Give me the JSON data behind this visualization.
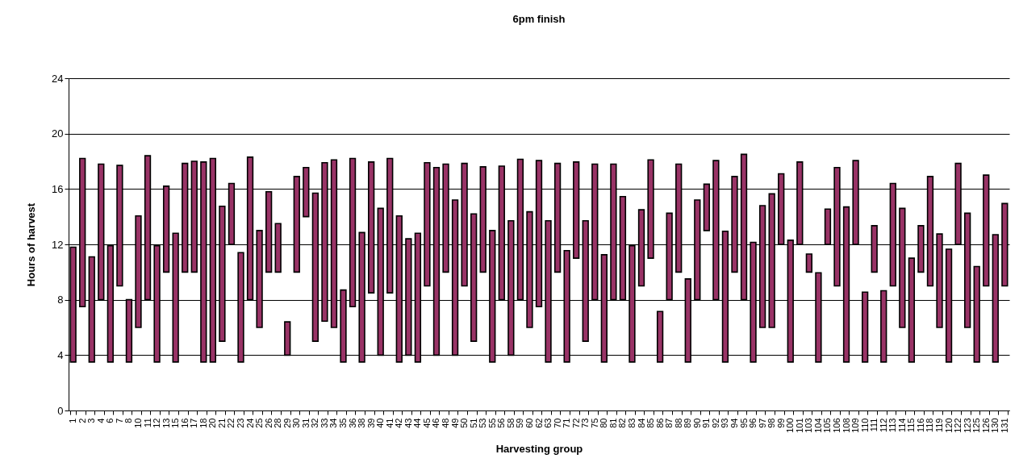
{
  "chart_data": {
    "type": "bar",
    "title": "6pm finish",
    "xlabel": "Harvesting group",
    "ylabel": "Hours of harvest",
    "categories": [
      "1",
      "2",
      "3",
      "4",
      "6",
      "7",
      "8",
      "10",
      "11",
      "12",
      "13",
      "15",
      "16",
      "17",
      "18",
      "20",
      "21",
      "22",
      "23",
      "24",
      "25",
      "26",
      "28",
      "29",
      "30",
      "31",
      "32",
      "33",
      "34",
      "35",
      "36",
      "38",
      "39",
      "40",
      "41",
      "42",
      "43",
      "44",
      "45",
      "46",
      "48",
      "49",
      "50",
      "51",
      "53",
      "55",
      "56",
      "58",
      "59",
      "60",
      "62",
      "63",
      "70",
      "71",
      "72",
      "73",
      "75",
      "80",
      "81",
      "82",
      "83",
      "84",
      "85",
      "86",
      "87",
      "88",
      "89",
      "90",
      "91",
      "92",
      "93",
      "94",
      "95",
      "96",
      "97",
      "98",
      "99",
      "100",
      "101",
      "103",
      "104",
      "105",
      "106",
      "108",
      "109",
      "110",
      "111",
      "112",
      "113",
      "114",
      "115",
      "116",
      "118",
      "119",
      "120",
      "122",
      "123",
      "125",
      "126",
      "130",
      "131"
    ],
    "base": [
      3.5,
      7.5,
      3.5,
      8,
      3.5,
      9,
      3.5,
      6,
      8,
      3.5,
      10,
      3.5,
      10,
      10,
      3.5,
      3.5,
      5,
      12,
      3.5,
      8,
      6,
      10,
      10,
      4,
      10,
      14,
      5,
      6.45,
      6,
      3.5,
      7.5,
      3.5,
      8.5,
      4,
      8.5,
      3.5,
      4,
      3.5,
      9,
      4,
      10,
      4,
      9,
      5,
      10,
      3.5,
      8,
      4,
      8,
      6,
      7.5,
      3.5,
      10,
      3.5,
      11,
      5,
      8,
      3.5,
      8,
      8,
      3.5,
      9,
      11,
      3.5,
      8,
      10,
      3.5,
      8,
      13,
      8,
      3.5,
      10,
      8,
      3.5,
      6,
      6,
      12,
      3.5,
      12,
      10,
      3.5,
      12,
      9,
      3.5,
      12,
      3.5,
      10,
      3.5,
      9,
      6,
      3.5,
      10,
      9,
      6,
      3.5,
      12,
      6,
      3.5,
      9,
      3.5,
      9
    ],
    "values": [
      8.3,
      10.7,
      7.6,
      9.8,
      8.4,
      8.7,
      4.5,
      8.05,
      10.4,
      8.4,
      6.2,
      9.3,
      7.85,
      8,
      14.45,
      14.7,
      9.75,
      4.4,
      7.9,
      10.3,
      7,
      5.8,
      3.5,
      2.4,
      6.9,
      3.55,
      10.7,
      11.45,
      12.1,
      5.2,
      10.7,
      9.35,
      9.45,
      10.6,
      9.7,
      10.55,
      8.4,
      9.3,
      8.9,
      13.55,
      7.8,
      11.2,
      8.85,
      9.2,
      7.6,
      9.5,
      9.65,
      9.7,
      10.15,
      8.35,
      10.55,
      10.2,
      7.85,
      8.05,
      6.95,
      8.7,
      9.8,
      7.75,
      9.8,
      7.45,
      8.4,
      5.5,
      7.1,
      3.65,
      6.25,
      7.8,
      6,
      7.2,
      3.35,
      10.05,
      9.45,
      6.9,
      10.5,
      8.65,
      8.8,
      9.65,
      5.1,
      8.8,
      5.95,
      1.3,
      6.45,
      2.55,
      8.55,
      11.2,
      6.05,
      5.05,
      3.35,
      5.15,
      7.4,
      8.6,
      7.5,
      3.35,
      7.9,
      6.75,
      8.15,
      5.85,
      8.25,
      6.9,
      8,
      9.2,
      5.95
    ],
    "color": "#993366",
    "ylim": [
      0,
      24
    ],
    "yticks": [
      0,
      4,
      8,
      12,
      16,
      20,
      24
    ],
    "grid": "y"
  }
}
